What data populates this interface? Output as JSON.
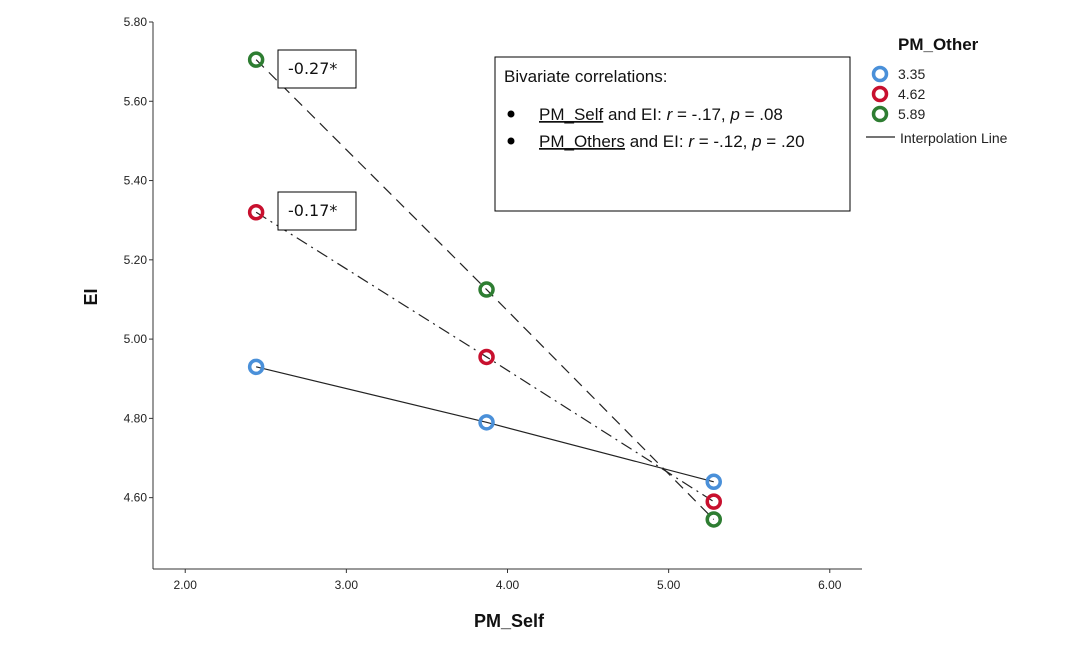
{
  "chart_data": {
    "type": "line",
    "xlabel": "PM_Self",
    "ylabel": "EI",
    "xlim": [
      1.8,
      6.2
    ],
    "ylim": [
      4.42,
      5.8
    ],
    "x_ticks": [
      "2.00",
      "3.00",
      "4.00",
      "5.00",
      "6.00"
    ],
    "y_ticks": [
      "4.60",
      "4.80",
      "5.00",
      "5.20",
      "5.40",
      "5.60",
      "5.80"
    ],
    "legend": {
      "title": "PM_Other",
      "placement": "top-right",
      "entries": [
        "3.35",
        "4.62",
        "5.89"
      ],
      "line_label": "Interpolation Line"
    },
    "series": [
      {
        "name": "3.35",
        "color": "#4a90d9",
        "dash": "solid",
        "x": [
          2.44,
          3.87,
          5.28
        ],
        "y": [
          4.93,
          4.79,
          4.64
        ]
      },
      {
        "name": "4.62",
        "color": "#c8102e",
        "dash": "dashdot",
        "x": [
          2.44,
          3.87,
          5.28
        ],
        "y": [
          5.32,
          4.955,
          4.59
        ]
      },
      {
        "name": "5.89",
        "color": "#2e7d32",
        "dash": "dashed",
        "x": [
          2.44,
          3.87,
          5.28
        ],
        "y": [
          5.705,
          5.125,
          4.545
        ]
      }
    ],
    "annotations": [
      "-0.27*",
      "-0.17*"
    ],
    "text_box": {
      "heading": "Bivariate correlations:",
      "items": [
        {
          "var": "PM_Self",
          "rest": " and EI: ",
          "r_label": "r",
          "r_val": " = -.17, ",
          "p_label": "p",
          "p_val": " = .08"
        },
        {
          "var": "PM_Others",
          "rest": " and EI: ",
          "r_label": "r",
          "r_val": " = -.12, ",
          "p_label": "p",
          "p_val": " = .20"
        }
      ]
    }
  }
}
